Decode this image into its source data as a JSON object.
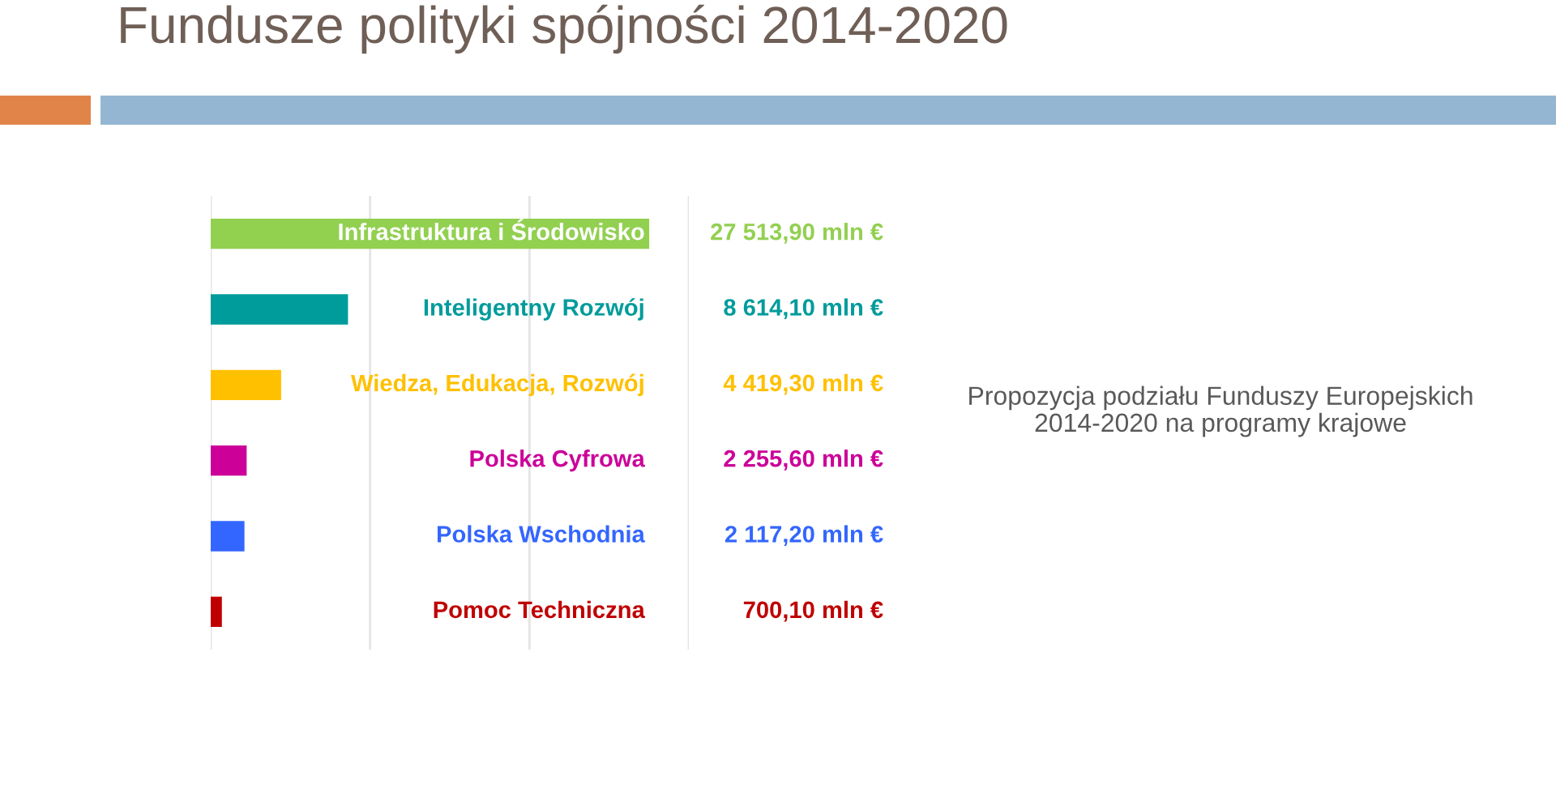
{
  "chart_data": {
    "type": "bar",
    "orientation": "horizontal",
    "title": "Fundusze polityki spójności 2014-2020",
    "categories": [
      "Infrastruktura i Środowisko",
      "Inteligentny Rozwój",
      "Wiedza, Edukacja, Rozwój",
      "Polska Cyfrowa",
      "Polska Wschodnia",
      "Pomoc Techniczna"
    ],
    "values": [
      27513.9,
      8614.1,
      4419.3,
      2255.6,
      2117.2,
      700.1
    ],
    "colors": [
      "#92d050",
      "#009b9b",
      "#ffc000",
      "#cc0099",
      "#3366ff",
      "#c00000"
    ],
    "value_labels": [
      "27 513,90 mln €",
      "8 614,10 mln €",
      "4 419,30 mln €",
      "2 255,60 mln €",
      "2 117,20 mln €",
      "700,10 mln €"
    ],
    "xlim": [
      0,
      30000
    ],
    "xticks": [
      {
        "value": 0,
        "label": null
      },
      {
        "value": 10000,
        "label": null
      },
      {
        "value": 20000,
        "label": null
      },
      {
        "value": 30000,
        "label": null
      }
    ],
    "grid": "x",
    "tick_labels": "y",
    "annotations": [
      "Propozycja podziału Funduszy Europejskich\n2014-2020 na programy krajowe"
    ]
  }
}
